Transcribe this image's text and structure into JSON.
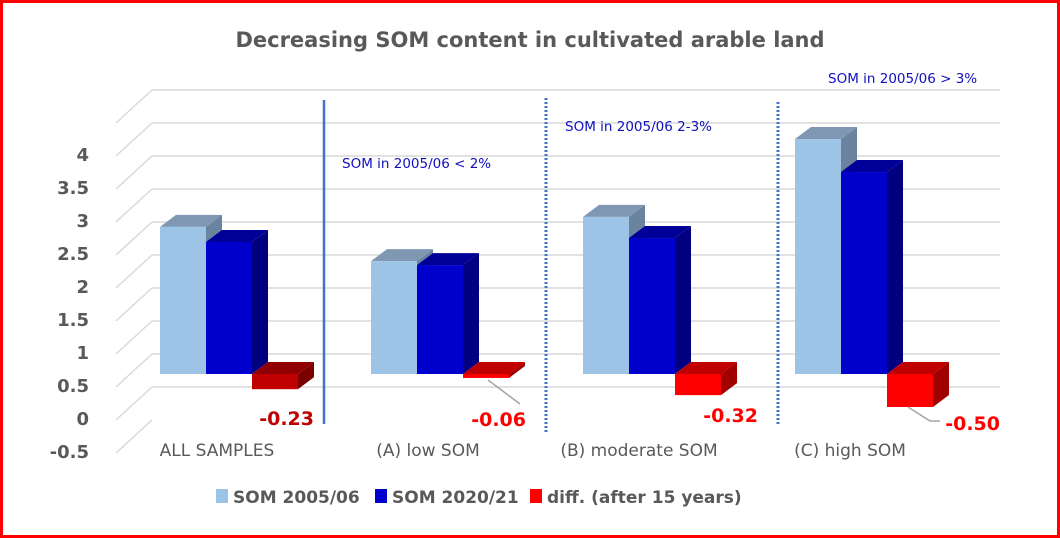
{
  "chart_data": {
    "type": "bar",
    "style": "3d-clustered-column",
    "title": "Decreasing SOM content in cultivated arable land",
    "xlabel": "",
    "ylabel": "",
    "ylim": [
      -0.5,
      4.5
    ],
    "yticks": [
      4,
      3.5,
      3,
      2.5,
      2,
      1.5,
      1,
      0.5,
      0,
      -0.5
    ],
    "ytick_labels": [
      "4",
      "3.5",
      "3",
      "2.5",
      "2",
      "1.5",
      "1",
      "0.5",
      "0",
      "-0.5"
    ],
    "grid": true,
    "categories": [
      "ALL SAMPLES",
      "(A) low SOM",
      "(B) moderate SOM",
      "(C) high SOM"
    ],
    "series": [
      {
        "name": "SOM 2005/06",
        "color": "#9dc3e6",
        "values": [
          2.23,
          1.71,
          2.38,
          3.56
        ]
      },
      {
        "name": "SOM 2020/21",
        "color": "#0000cc",
        "values": [
          2.0,
          1.65,
          2.06,
          3.06
        ]
      },
      {
        "name": "diff. (after 15 years)",
        "color": "#ff0000",
        "values": [
          -0.23,
          -0.06,
          -0.32,
          -0.5
        ]
      }
    ],
    "data_labels": [
      "-0.23",
      "-0.06",
      "-0.32",
      "-0.50"
    ],
    "data_label_colors": [
      "#c00000",
      "#ff0000",
      "#ff0000",
      "#ff0000"
    ],
    "diff_bar_colors": [
      "#c00000",
      "#ff0000",
      "#ff0000",
      "#ff0000"
    ],
    "annotations": [
      "SOM in 2005/06 < 2%",
      "SOM in 2005/06 2-3%",
      "SOM in 2005/06 > 3%"
    ],
    "legend_position": "bottom",
    "legend": [
      "SOM 2005/06",
      "SOM 2020/21",
      "diff. (after 15 years)"
    ]
  }
}
